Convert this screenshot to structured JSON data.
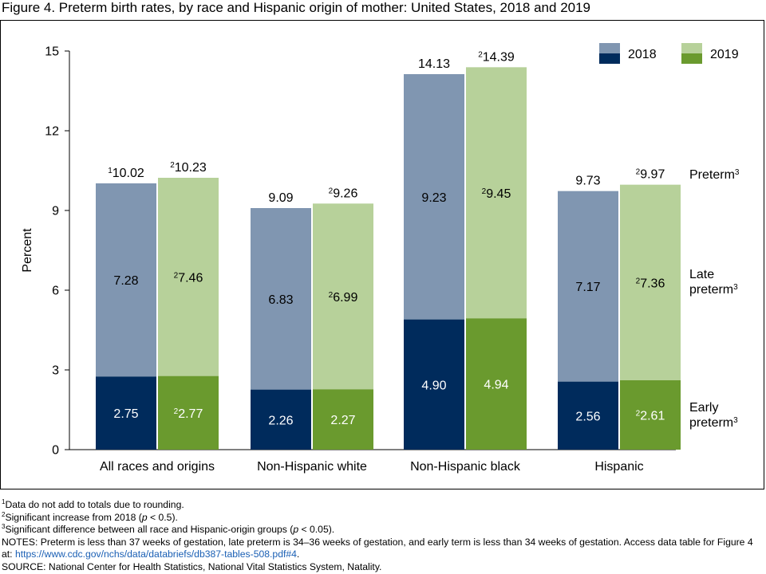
{
  "title": "Figure 4. Preterm birth rates, by race and Hispanic origin of mother: United States, 2018 and 2019",
  "colors": {
    "bar_2018_light": "#8096b1",
    "bar_2018_dark": "#002b5c",
    "bar_2019_light": "#b7d19a",
    "bar_2019_dark": "#6a9a2e"
  },
  "chart_data": {
    "type": "bar",
    "stacked": true,
    "ylabel": "Percent",
    "ylim": [
      0,
      15
    ],
    "yticks": [
      0,
      3,
      6,
      9,
      12,
      15
    ],
    "categories": [
      "All races and origins",
      "Non-Hispanic white",
      "Non-Hispanic black",
      "Hispanic"
    ],
    "series": [
      {
        "name": "2018",
        "early_preterm": [
          2.75,
          2.26,
          4.9,
          2.56
        ],
        "late_preterm": [
          7.28,
          6.83,
          9.23,
          7.17
        ],
        "preterm": [
          10.02,
          9.09,
          14.13,
          9.73
        ],
        "early_labels": [
          "2.75",
          "2.26",
          "4.90",
          "2.56"
        ],
        "late_labels": [
          "7.28",
          "6.83",
          "9.23",
          "7.17"
        ],
        "total_labels": [
          "10.02",
          "9.09",
          "14.13",
          "9.73"
        ],
        "early_sup": [
          "",
          "",
          "",
          ""
        ],
        "late_sup": [
          "",
          "",
          "",
          ""
        ],
        "total_sup": [
          "1",
          "",
          "",
          ""
        ]
      },
      {
        "name": "2019",
        "early_preterm": [
          2.77,
          2.27,
          4.94,
          2.61
        ],
        "late_preterm": [
          7.46,
          6.99,
          9.45,
          7.36
        ],
        "preterm": [
          10.23,
          9.26,
          14.39,
          9.97
        ],
        "early_labels": [
          "2.77",
          "2.27",
          "4.94",
          "2.61"
        ],
        "late_labels": [
          "7.46",
          "6.99",
          "9.45",
          "7.36"
        ],
        "total_labels": [
          "10.23",
          "9.26",
          "14.39",
          "9.97"
        ],
        "early_sup": [
          "2",
          "",
          "",
          "2"
        ],
        "late_sup": [
          "2",
          "2",
          "2",
          "2"
        ],
        "total_sup": [
          "2",
          "2",
          "2",
          "2"
        ]
      }
    ],
    "legend": [
      "2018",
      "2019"
    ],
    "legend_position": "top-right",
    "side_labels": {
      "preterm": "Preterm",
      "late_line1": "Late",
      "late_line2": "preterm",
      "early_line1": "Early",
      "early_line2": "preterm",
      "sup": "3"
    }
  },
  "footnotes": {
    "n1_sup": "1",
    "n1": "Data do not add to totals due to rounding.",
    "n2_sup": "2",
    "n2_a": "Significant increase from 2018 (",
    "n2_p": "p",
    "n2_b": " < 0.5).",
    "n3_sup": "3",
    "n3_a": "Significant difference between all race and Hispanic-origin groups (",
    "n3_p": "p",
    "n3_b": " < 0.05).",
    "notes": "NOTES: Preterm is less than 37 weeks of gestation, late preterm is 34–36 weeks of gestation, and early term is less than 34 weeks of gestation. Access data table for Figure 4 at: ",
    "link": "https://www.cdc.gov/nchs/data/databriefs/db387-tables-508.pdf#4",
    "notes_end": ".",
    "source": "SOURCE: National Center for Health Statistics, National Vital Statistics System, Natality."
  }
}
